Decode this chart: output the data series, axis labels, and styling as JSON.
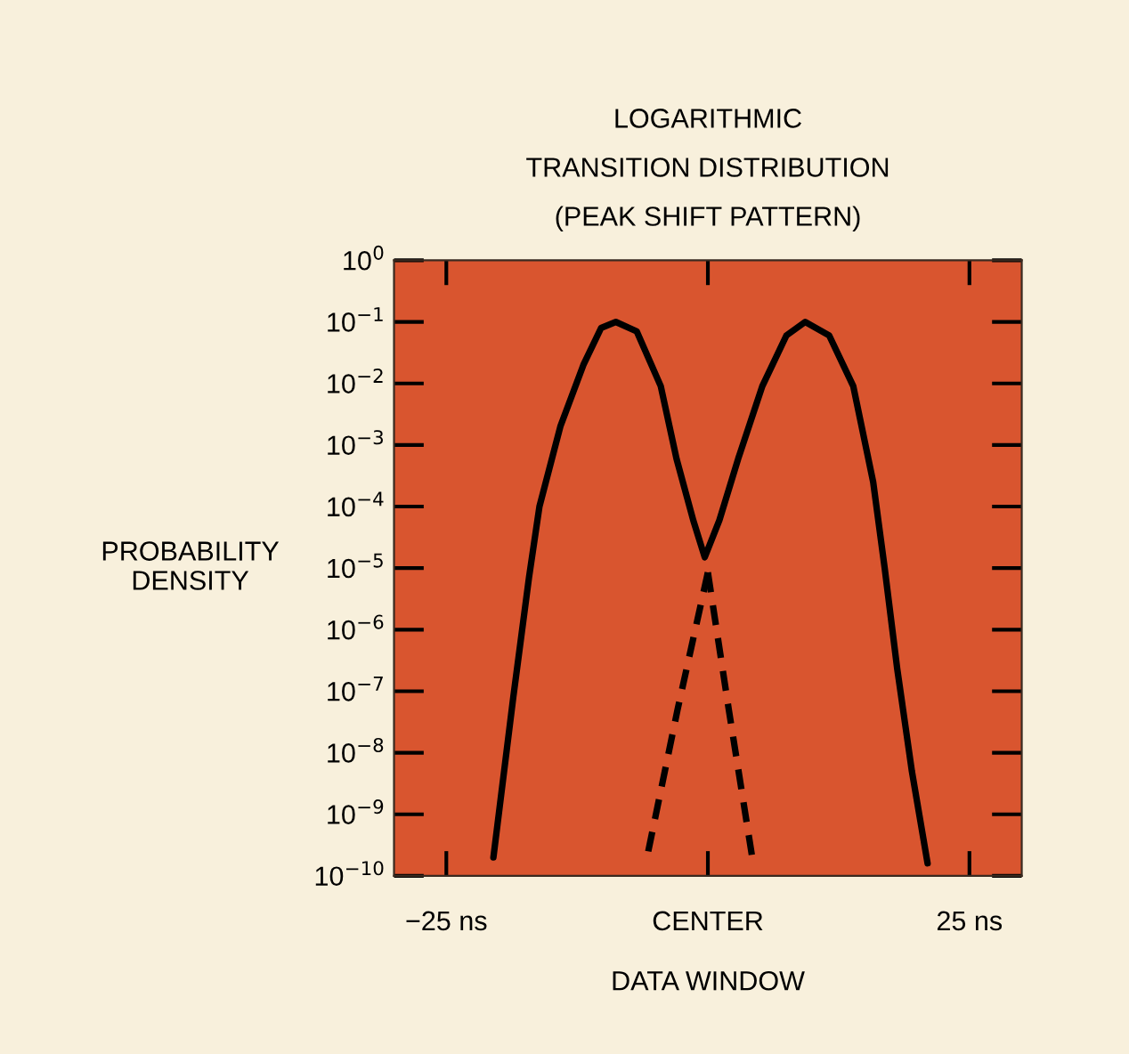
{
  "chart_data": {
    "type": "line",
    "title": "LOGARITHMIC\nTRANSITION DISTRIBUTION\n(PEAK SHIFT PATTERN)",
    "xlabel": "DATA WINDOW",
    "ylabel": "PROBABILITY\nDENSITY",
    "log": "y",
    "grid": false,
    "marker": "none",
    "xlim": [
      -30,
      30
    ],
    "xticks": [
      {
        "value": -25,
        "label": "−25 ns"
      },
      {
        "value": 0,
        "label": "CENTER"
      },
      {
        "value": 25,
        "label": "25 ns"
      }
    ],
    "ylim": [
      1e-10,
      1
    ],
    "yticks": [
      {
        "value": 1,
        "label": "10$^{0}$"
      },
      {
        "value": 0.1,
        "label": "10$^{−1}$"
      },
      {
        "value": 0.01,
        "label": "10$^{−2}$"
      },
      {
        "value": 0.001,
        "label": "10$^{−3}$"
      },
      {
        "value": 0.0001,
        "label": "10$^{−4}$"
      },
      {
        "value": 1e-05,
        "label": "10$^{−5}$"
      },
      {
        "value": 1e-06,
        "label": "10$^{−6}$"
      },
      {
        "value": 1e-07,
        "label": "10$^{−7}$"
      },
      {
        "value": 1e-08,
        "label": "10$^{−8}$"
      },
      {
        "value": 1e-09,
        "label": "10$^{−9}$"
      },
      {
        "value": 1e-10,
        "label": "10$^{−10}$"
      }
    ],
    "series": [
      {
        "color": "#000000",
        "line_style": "solid",
        "x": [
          -20.5,
          -18.6,
          -17.1,
          -16.1,
          -14.1,
          -11.9,
          -10.2,
          -8.8,
          -6.8,
          -4.5,
          -3.0,
          -1.4,
          -0.3,
          1.1,
          2.9,
          5.2,
          7.5,
          9.3,
          11.6,
          13.9,
          15.8,
          16.9,
          18.1,
          19.5,
          21.0
        ],
        "values": [
          2e-10,
          8e-08,
          7e-06,
          0.0001,
          0.002,
          0.02,
          0.08,
          0.1,
          0.07,
          0.009,
          0.0006,
          6e-05,
          1.5e-05,
          6e-05,
          0.0006,
          0.009,
          0.06,
          0.1,
          0.06,
          0.009,
          0.00025,
          1e-05,
          2.3e-07,
          5e-09,
          1.6e-10
        ]
      },
      {
        "color": "#000000",
        "line_style": "dashed",
        "x": [
          0,
          2.0,
          4.2
        ],
        "values": [
          8.5e-06,
          5e-08,
          2.2e-10
        ]
      },
      {
        "color": "#000000",
        "line_style": "dashed",
        "x": [
          0,
          -2.9,
          -5.7
        ],
        "values": [
          8.5e-06,
          5e-08,
          2.5e-10
        ]
      }
    ]
  }
}
